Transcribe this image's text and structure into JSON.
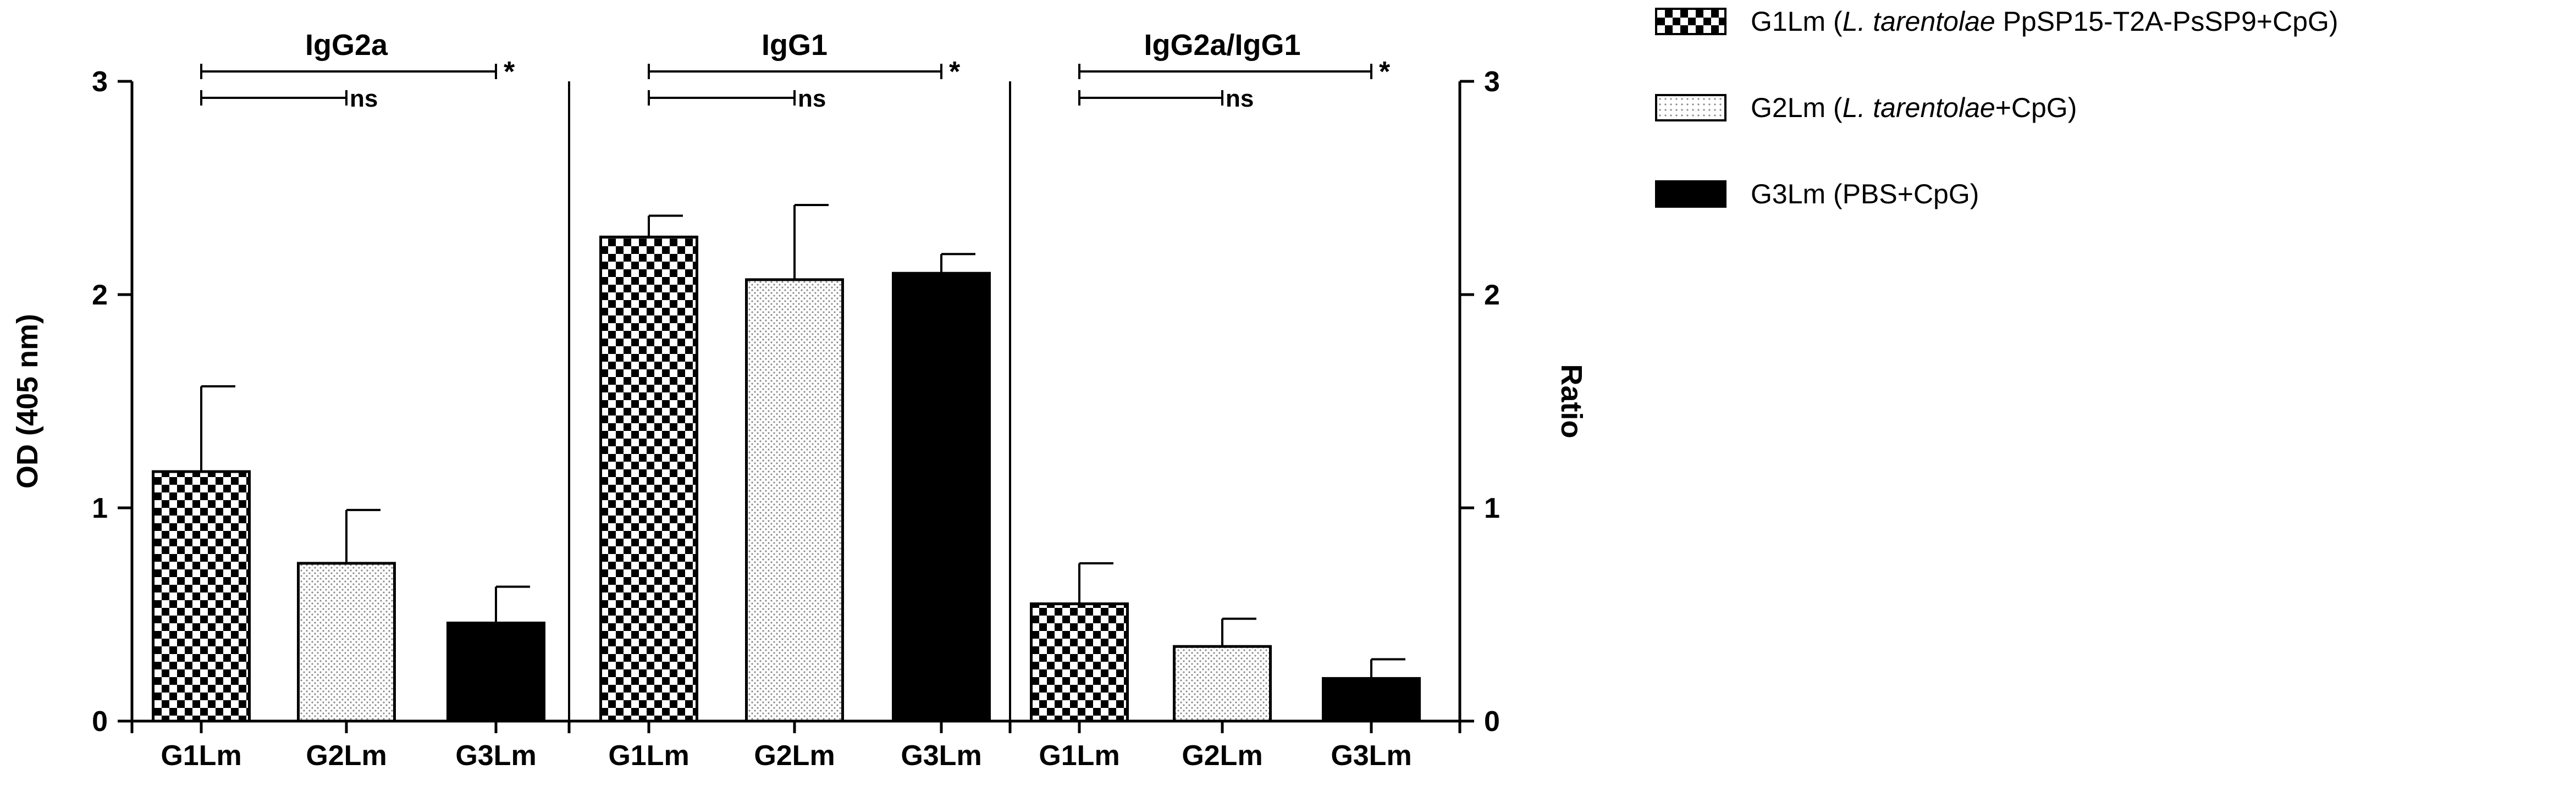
{
  "chart_data": {
    "type": "bar",
    "y_left": {
      "label": "OD (405 nm)",
      "ticks": [
        0,
        1,
        2,
        3
      ],
      "ylim": [
        0,
        3
      ]
    },
    "y_right": {
      "label": "Ratio",
      "ticks": [
        0,
        1,
        2,
        3
      ],
      "ylim": [
        0,
        3
      ]
    },
    "categories": [
      "G1Lm",
      "G2Lm",
      "G3Lm"
    ],
    "series": [
      {
        "name": "G1Lm",
        "pattern": "checker"
      },
      {
        "name": "G2Lm",
        "pattern": "dots"
      },
      {
        "name": "G3Lm",
        "pattern": "solid"
      }
    ],
    "panels": [
      {
        "title": "IgG2a",
        "axis": "left",
        "values": [
          1.17,
          0.74,
          0.46
        ],
        "errors": [
          0.4,
          0.25,
          0.17
        ],
        "comparisons": [
          {
            "from": 0,
            "to": 2,
            "label": "*"
          },
          {
            "from": 0,
            "to": 1,
            "label": "ns"
          }
        ]
      },
      {
        "title": "IgG1",
        "axis": "left",
        "values": [
          2.27,
          2.07,
          2.1
        ],
        "errors": [
          0.1,
          0.35,
          0.09
        ],
        "comparisons": [
          {
            "from": 0,
            "to": 2,
            "label": "*"
          },
          {
            "from": 0,
            "to": 1,
            "label": "ns"
          }
        ]
      },
      {
        "title": "IgG2a/IgG1",
        "axis": "right",
        "values": [
          0.55,
          0.35,
          0.2
        ],
        "errors": [
          0.19,
          0.13,
          0.09
        ],
        "comparisons": [
          {
            "from": 0,
            "to": 2,
            "label": "*"
          },
          {
            "from": 0,
            "to": 1,
            "label": "ns"
          }
        ]
      }
    ],
    "legend": {
      "position": "top-right",
      "entries": [
        {
          "pattern": "checker",
          "prefix": "G1Lm (",
          "italic": "L. tarentolae",
          "suffix": " PpSP15-T2A-PsSP9+CpG)"
        },
        {
          "pattern": "dots",
          "prefix": "G2Lm (",
          "italic": "L. tarentolae",
          "suffix": "+CpG)"
        },
        {
          "pattern": "solid",
          "prefix": "G3Lm (PBS+CpG)",
          "italic": "",
          "suffix": ""
        }
      ]
    },
    "grid": false
  }
}
